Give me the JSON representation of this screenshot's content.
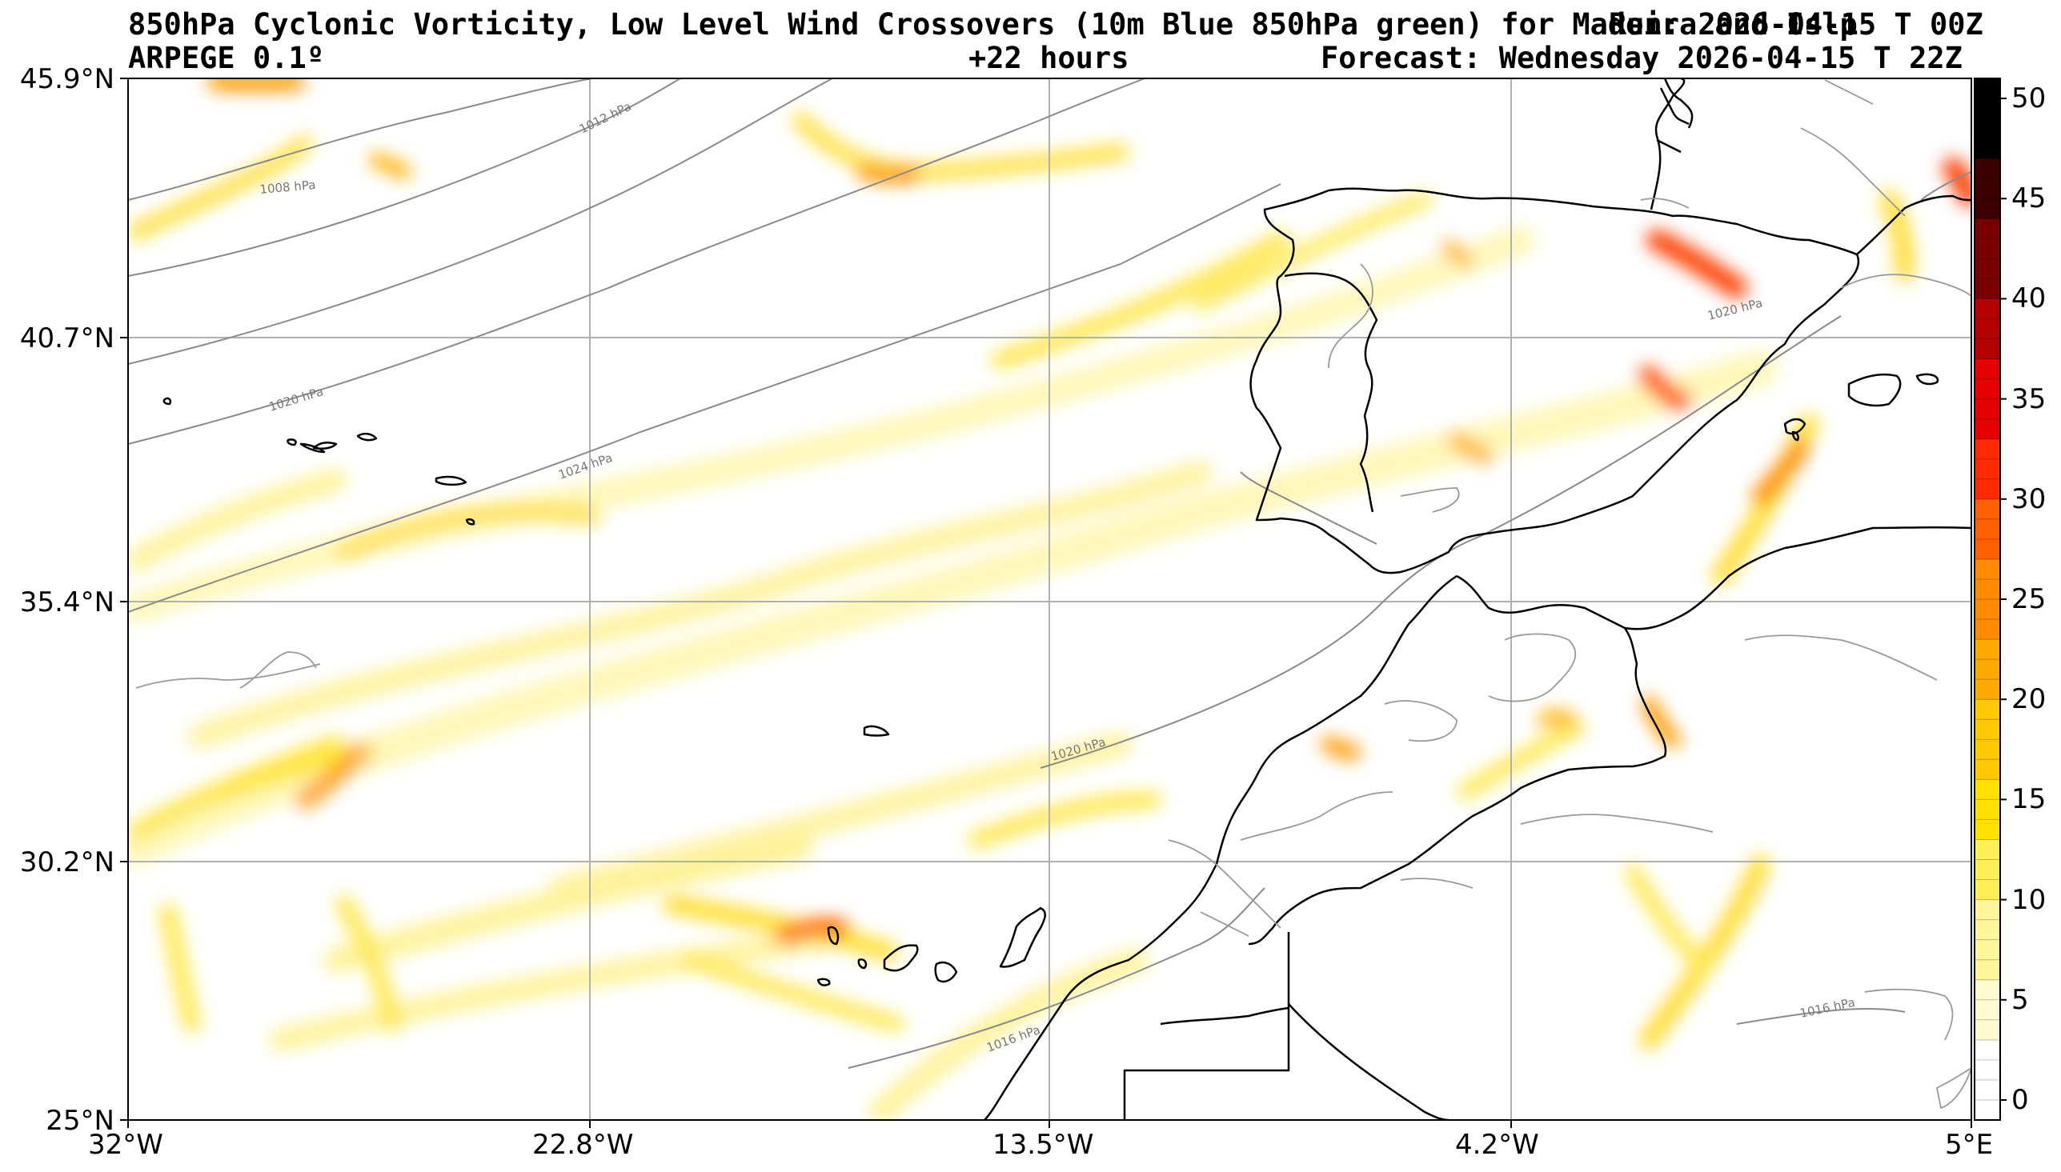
{
  "header": {
    "title": "850hPa Cyclonic Vorticity, Low Level Wind Crossovers (10m Blue 850hPa green) for Madeira and Islp",
    "run": "Run: 2026-04-15 T 00Z",
    "model": "ARPEGE 0.1º",
    "lead": "+22 hours",
    "forecast": "Forecast: Wednesday 2026-04-15 T 22Z"
  },
  "axes": {
    "lat_labels": [
      "45.9°N",
      "40.7°N",
      "35.4°N",
      "30.2°N",
      "25°N"
    ],
    "lon_labels": [
      "32°W",
      "22.8°W",
      "13.5°W",
      "4.2°W",
      "5°E"
    ]
  },
  "isobars": [
    {
      "label": "1008 hPa"
    },
    {
      "label": "1012 hPa"
    },
    {
      "label": "1020 hPa"
    },
    {
      "label": "1024 hPa"
    },
    {
      "label": "1020 hPa"
    },
    {
      "label": "1020 hPa"
    },
    {
      "label": "1016 hPa"
    },
    {
      "label": "1016 hPa"
    }
  ],
  "colorbar": {
    "ticks": [
      "50",
      "45",
      "40",
      "35",
      "30",
      "25",
      "20",
      "15",
      "10",
      "5",
      "0"
    ],
    "colors": [
      "#ffffff",
      "#fffbd0",
      "#fff59a",
      "#ffee55",
      "#ffe000",
      "#ffc800",
      "#ffaa00",
      "#ff8c00",
      "#ff6000",
      "#ff2a00",
      "#e60000",
      "#b30000",
      "#7a0000",
      "#3d0000",
      "#000000"
    ]
  },
  "colors": {
    "grid": "#b0b0b0",
    "coast": "#000000",
    "isobar": "#8a8a8a"
  }
}
